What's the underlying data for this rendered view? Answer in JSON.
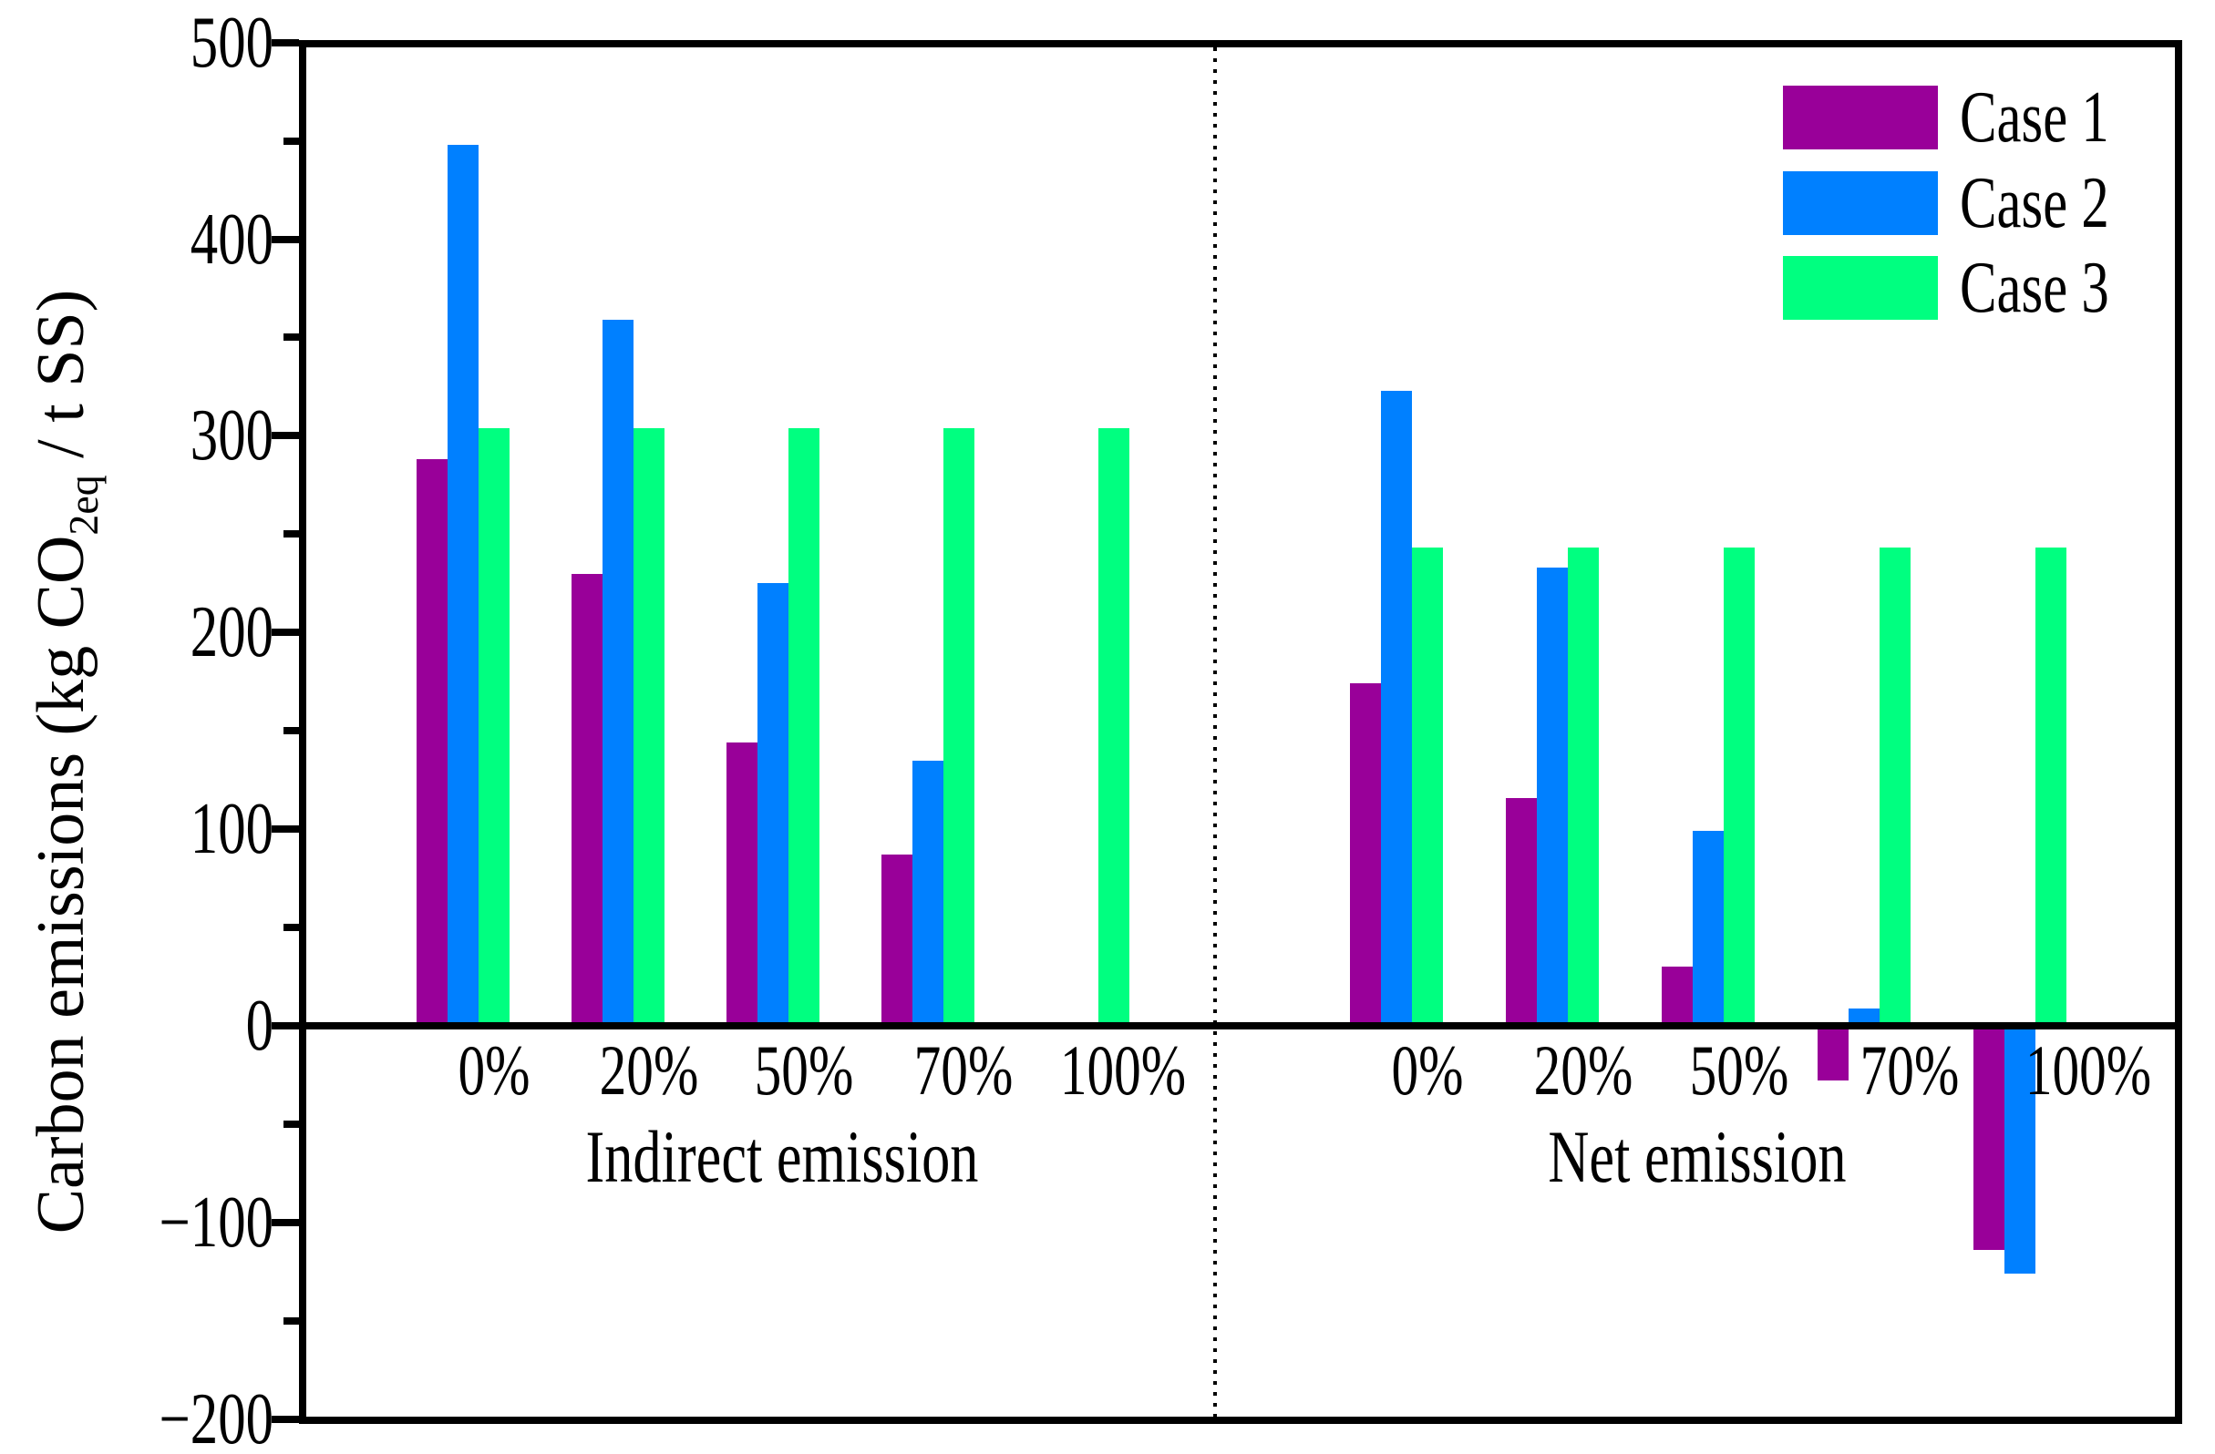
{
  "figure": {
    "y_axis": {
      "title_pre": "Carbon emissions (kg CO",
      "title_sub": "2eq",
      "title_post": " / t SS)",
      "tick_values": [
        500,
        400,
        300,
        200,
        100,
        0,
        -100,
        -200
      ],
      "tick_labels": [
        "500",
        "400",
        "300",
        "200",
        "100",
        "0",
        "−100",
        "−200"
      ],
      "minor_tick_values": [
        450,
        350,
        250,
        150,
        50,
        -50,
        -150
      ]
    },
    "x_axis": {
      "group_labels": [
        "Indirect emission",
        "Net emission"
      ],
      "category_labels": [
        "0%",
        "20%",
        "50%",
        "70%",
        "100%"
      ]
    },
    "legend": {
      "items": [
        {
          "label": "Case 1",
          "color": "#990099"
        },
        {
          "label": "Case 2",
          "color": "#0080FF"
        },
        {
          "label": "Case 3",
          "color": "#00FF80"
        }
      ]
    }
  },
  "chart_data": {
    "type": "bar",
    "title": "",
    "xlabel": "",
    "ylabel": "Carbon emissions (kg CO2eq / t SS)",
    "ylim": [
      -200,
      500
    ],
    "ytick_interval": 100,
    "grid": false,
    "legend_position": "upper right",
    "categories": [
      "0%",
      "20%",
      "50%",
      "70%",
      "100%"
    ],
    "groups": [
      {
        "name": "Indirect emission",
        "series": [
          {
            "name": "Case 1",
            "color": "#990099",
            "values": [
              288,
              230,
              144,
              87,
              0
            ]
          },
          {
            "name": "Case 2",
            "color": "#0080FF",
            "values": [
              448,
              359,
              225,
              135,
              0
            ]
          },
          {
            "name": "Case 3",
            "color": "#00FF80",
            "values": [
              304,
              304,
              304,
              304,
              304
            ]
          }
        ]
      },
      {
        "name": "Net emission",
        "series": [
          {
            "name": "Case 1",
            "color": "#990099",
            "values": [
              174,
              116,
              30,
              -28,
              -114
            ]
          },
          {
            "name": "Case 2",
            "color": "#0080FF",
            "values": [
              323,
              233,
              99,
              9,
              -126
            ]
          },
          {
            "name": "Case 3",
            "color": "#00FF80",
            "values": [
              243,
              243,
              243,
              243,
              243
            ]
          }
        ]
      }
    ]
  }
}
